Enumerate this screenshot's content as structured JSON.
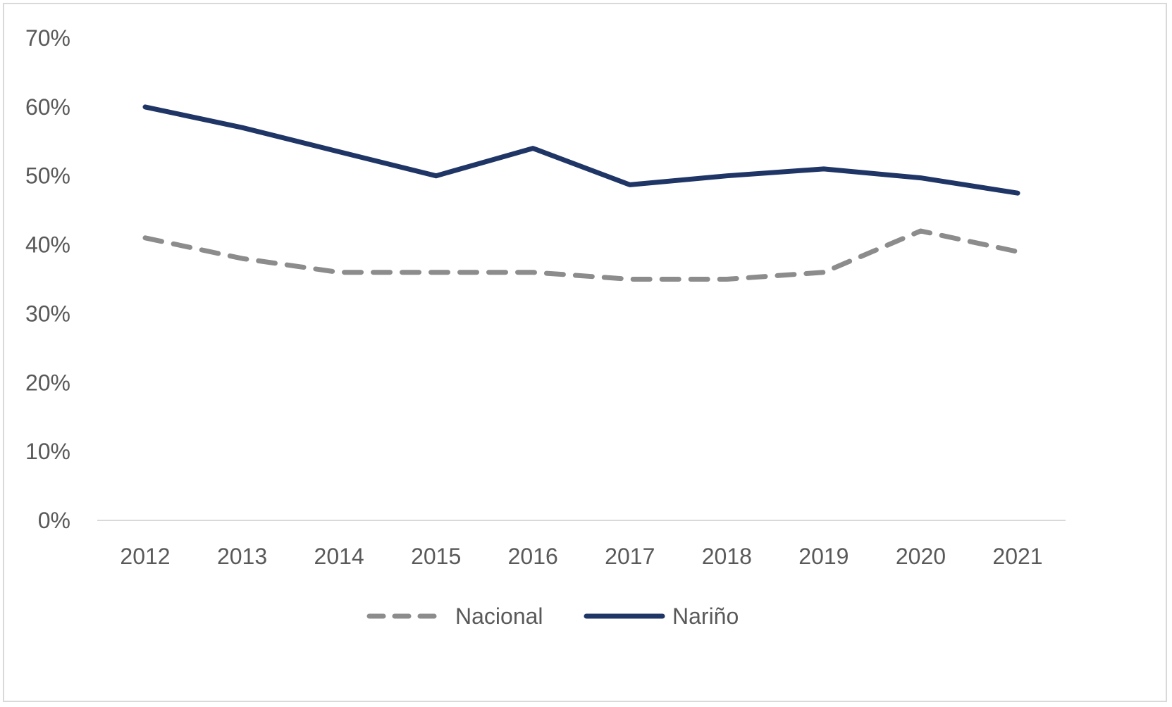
{
  "chart_data": {
    "type": "line",
    "title": "",
    "xlabel": "",
    "ylabel": "",
    "categories": [
      "2012",
      "2013",
      "2014",
      "2015",
      "2016",
      "2017",
      "2018",
      "2019",
      "2020",
      "2021"
    ],
    "ylim": [
      0,
      0.7
    ],
    "yticks": [
      0,
      0.1,
      0.2,
      0.3,
      0.4,
      0.5,
      0.6,
      0.7
    ],
    "ytick_labels": [
      "0%",
      "10%",
      "20%",
      "30%",
      "40%",
      "50%",
      "60%",
      "70%"
    ],
    "grid": false,
    "legend_position": "bottom",
    "series": [
      {
        "name": "Nacional",
        "values": [
          0.41,
          0.38,
          0.36,
          0.36,
          0.36,
          0.35,
          0.35,
          0.36,
          0.42,
          0.39
        ],
        "color": "#8c8c8c",
        "style": "dashed"
      },
      {
        "name": "Nariño",
        "values": [
          0.6,
          0.57,
          0.535,
          0.5,
          0.54,
          0.487,
          0.5,
          0.51,
          0.497,
          0.475
        ],
        "color": "#1f3566",
        "style": "solid"
      }
    ]
  }
}
